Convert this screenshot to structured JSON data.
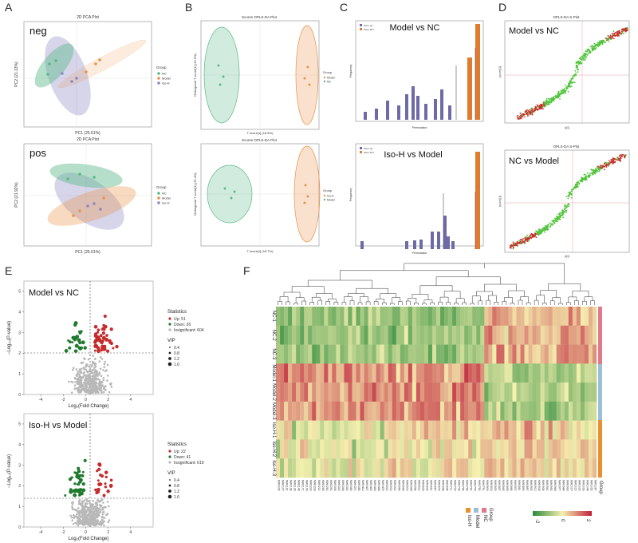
{
  "panel_letters": [
    "A",
    "B",
    "C",
    "D",
    "E",
    "F"
  ],
  "A": {
    "neg": {
      "label": "neg",
      "title": "2D PCA Plot",
      "xlabel": "PC1 (25.61%)",
      "ylabel": "PC2 (21.13%)",
      "legend_title": "Group",
      "legend": [
        "NC",
        "Model",
        "Iso-H"
      ]
    },
    "pos": {
      "label": "pos",
      "title": "2D PCA Plot",
      "xlabel": "PC1 (26.01%)",
      "ylabel": "PC2 (21.92%)",
      "legend_title": "Group",
      "legend": [
        "NC",
        "Model",
        "Iso-H"
      ]
    },
    "colors": {
      "NC": "#5ab98a",
      "Model": "#e8944a",
      "Iso-H": "#8d86c4"
    }
  },
  "B": {
    "top": {
      "title": "Scores OPLS-DA Plot",
      "xlabel": "T score[1] (16.6%)",
      "ylabel": "Orthogonal T score[1] (13.6%)",
      "legend_title": "Group",
      "legend": [
        "Model",
        "NC"
      ]
    },
    "bottom": {
      "title": "Scores OPLS-DA Plot",
      "xlabel": "T score[1] (18.7%)",
      "ylabel": "Orthogonal T score[1] (15.4%)",
      "legend_title": "Group",
      "legend": [
        "Iso-H",
        "Model"
      ]
    }
  },
  "C": {
    "top": {
      "comparison": "Model vs NC",
      "legend": [
        "Perm Q²",
        "Perm R²Y"
      ],
      "xlabel": "Permutation",
      "ylabel": "Frequency"
    },
    "bottom": {
      "comparison": "Iso-H vs Model",
      "legend": [
        "Perm Q²",
        "Perm R²Y"
      ],
      "xlabel": "Permutation",
      "ylabel": "Frequency"
    },
    "colors": {
      "q2": "#6e6aa8",
      "r2y": "#e07a2e"
    }
  },
  "D": {
    "top": {
      "comparison": "Model vs NC",
      "title": "OPLS-DA S-Plot",
      "xlabel": "p[1]",
      "ylabel": "p(corr)[1]"
    },
    "bottom": {
      "comparison": "NC vs Model",
      "title": "OPLS-DA S-Plot",
      "xlabel": "p[1]",
      "ylabel": "p(corr)[1]"
    },
    "colors": {
      "sig": "#cc2a2a",
      "nonsig": "#4fc43a"
    }
  },
  "E": {
    "top": {
      "comparison": "Model vs NC",
      "stats_title": "Statistics",
      "stats": [
        "Up: 51",
        "Down: 26",
        "Insignificant: 604"
      ],
      "vip_title": "VIP",
      "vip": [
        "0.4",
        "0.8",
        "1.2",
        "1.6"
      ],
      "xlabel": "Log₂(Fold Change)",
      "ylabel": "−Log₁₀(P-value)",
      "xticks": [
        "-4",
        "-2",
        "0",
        "2",
        "4"
      ],
      "yticks": [
        "0",
        "1",
        "2",
        "3",
        "4",
        "5"
      ]
    },
    "bottom": {
      "comparison": "Iso-H vs Model",
      "stats_title": "Statistics",
      "stats": [
        "Up: 22",
        "Down: 41",
        "Insignificant: 619"
      ],
      "vip_title": "VIP",
      "vip": [
        "0.4",
        "0.8",
        "1.2",
        "1.6"
      ],
      "xlabel": "Log₂(Fold Change)",
      "ylabel": "−Log₁₀(P-value)",
      "xticks": [
        "-4",
        "-2",
        "0",
        "2",
        "4"
      ],
      "yticks": [
        "0",
        "1",
        "2",
        "3",
        "4",
        "5"
      ]
    },
    "colors": {
      "up": "#c62a2a",
      "down": "#1f7a2e",
      "insig": "#b8b8b8"
    }
  },
  "F": {
    "rows": [
      "NC-1",
      "NC-2",
      "NC-3",
      "Model-1",
      "Model-2",
      "Model-3",
      "Iso-H-1",
      "Iso-H-2",
      "Iso-H-3"
    ],
    "group_label": "Group",
    "legend_group_title": "Group",
    "legend_groups": [
      "Iso-H",
      "Model",
      "NC"
    ],
    "legend_scale": [
      "-2",
      "0",
      "2"
    ],
    "group_colors": {
      "NC": "#e07a8a",
      "Model": "#9ac0d8",
      "Iso-H": "#e8902e"
    },
    "scale_colors": {
      "low": "#2a8a3a",
      "mid": "#f5f0b0",
      "high": "#c0203a"
    },
    "columns": [
      "MW0005",
      "MW0107",
      "MW0115",
      "MW0136",
      "MW0139",
      "MW0146",
      "MW0171",
      "MW0178",
      "MW0203",
      "MW0208",
      "MW0220",
      "MW0249",
      "MW0262",
      "MW0291",
      "MW0308",
      "MW0316",
      "MW0344",
      "MW0350",
      "MW0365",
      "MW0371",
      "MW0385",
      "MW0412",
      "MW0427",
      "MW0433",
      "MW0454",
      "MW0468",
      "MW0479",
      "MW0502",
      "MW0515",
      "MW0531",
      "MW0546",
      "MW0558",
      "MW0573",
      "MW0589",
      "MW0596",
      "MW0612",
      "MW0628",
      "MW0640",
      "MW0651",
      "MW0667",
      "MW0679",
      "MW0688",
      "MW0694",
      "MW0711",
      "MW0725",
      "MW0739",
      "MW0744",
      "MW0758",
      "MW0762",
      "MW0775",
      "MW0783",
      "MW0791",
      "MW0806",
      "MW0818",
      "MW0829",
      "MW0837",
      "MW0845",
      "MW0859",
      "MW0866",
      "MW0872",
      "MW0881",
      "MW0890",
      "MW0897",
      "MW0905",
      "MW0912",
      "MW0926",
      "MW0934",
      "MW0941",
      "MW0953",
      "MW0968",
      "MW0977",
      "MW0984",
      "MW0993",
      "MW1007",
      "MW1015",
      "MW1023",
      "MW1036",
      "MW1044",
      "MW1052",
      "MW1067"
    ]
  }
}
